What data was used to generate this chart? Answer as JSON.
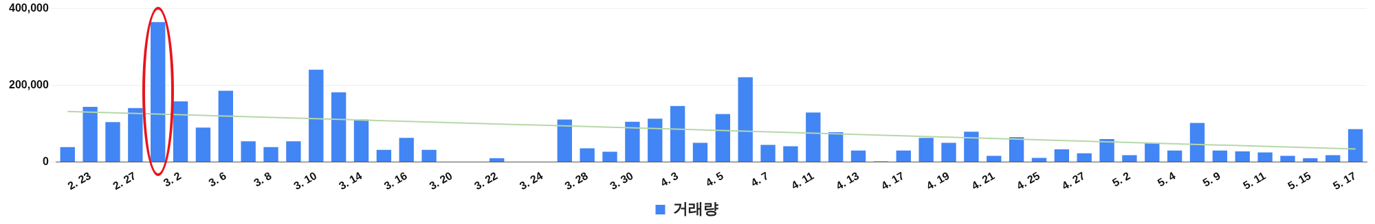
{
  "chart_data": {
    "type": "bar",
    "categories": [
      null,
      "2. 23",
      null,
      "2. 27",
      null,
      "3. 2",
      null,
      "3. 6",
      null,
      "3. 8",
      null,
      "3. 10",
      null,
      "3. 14",
      null,
      "3. 16",
      null,
      "3. 20",
      null,
      "3. 22",
      null,
      "3. 24",
      null,
      "3. 28",
      null,
      "3. 30",
      null,
      "4. 3",
      null,
      "4. 5",
      null,
      "4. 7",
      null,
      "4. 11",
      null,
      "4. 13",
      null,
      "4. 17",
      null,
      "4. 19",
      null,
      "4. 21",
      null,
      "4. 25",
      null,
      "4. 27",
      null,
      "5. 2",
      null,
      "5. 4",
      null,
      "5. 9",
      null,
      "5. 11",
      null,
      "5. 15",
      null,
      "5. 17"
    ],
    "series": [
      {
        "name": "거래량",
        "color": "#4285f4",
        "values": [
          39000,
          144000,
          104000,
          141000,
          365000,
          158000,
          90000,
          186000,
          54000,
          39000,
          54000,
          241000,
          182000,
          111000,
          32000,
          63000,
          32000,
          0,
          0,
          10000,
          0,
          0,
          111000,
          36000,
          27000,
          105000,
          113000,
          146000,
          50000,
          125000,
          221000,
          45000,
          41000,
          129000,
          78000,
          30000,
          2000,
          30000,
          63000,
          50000,
          79000,
          16000,
          65000,
          11000,
          33000,
          23000,
          60000,
          18000,
          50000,
          30000,
          102000,
          30000,
          28000,
          25000,
          16000,
          10000,
          18000,
          86000
        ]
      },
      {
        "type": "line",
        "color": "#b6d7a8",
        "values": [
          132000,
          null,
          null,
          null,
          null,
          null,
          null,
          null,
          null,
          null,
          null,
          null,
          null,
          null,
          null,
          null,
          null,
          null,
          null,
          null,
          null,
          null,
          null,
          null,
          null,
          null,
          null,
          null,
          null,
          null,
          null,
          null,
          null,
          null,
          null,
          null,
          null,
          null,
          null,
          null,
          null,
          null,
          null,
          null,
          null,
          null,
          null,
          null,
          null,
          null,
          null,
          null,
          null,
          null,
          null,
          null,
          null,
          34000
        ]
      }
    ],
    "ylim": [
      0,
      400000
    ],
    "yticks": [
      {
        "value": 0,
        "label": "0"
      },
      {
        "value": 200000,
        "label": "200,000"
      },
      {
        "value": 400000,
        "label": "400,000"
      }
    ],
    "grid": "y",
    "legend": "bottom"
  }
}
